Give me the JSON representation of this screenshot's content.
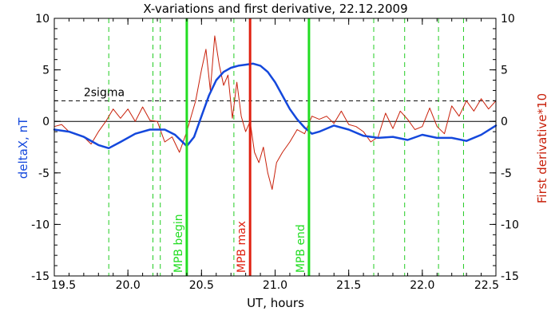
{
  "chart_data": {
    "type": "line",
    "title": "X-variations and first derivative, 22.12.2009",
    "xlabel": "UT, hours",
    "ylabel_left": "deltaX, nT",
    "ylabel_right": "First derivative*10",
    "xlim": [
      19.5,
      22.5
    ],
    "ylim": [
      -15,
      10
    ],
    "ylim_right": [
      -15,
      10
    ],
    "x_ticks": [
      19.5,
      20.0,
      20.5,
      21.0,
      21.5,
      22.0,
      22.5
    ],
    "x_tick_labels": [
      "19.5",
      "20.0",
      "20.5",
      "21.0",
      "21.5",
      "22.0",
      "22.5"
    ],
    "y_ticks": [
      10,
      5,
      0,
      -5,
      -10,
      -15
    ],
    "y_tick_labels": [
      "10",
      "5",
      "0",
      "-5",
      "-10",
      "-15"
    ],
    "y_right_ticks": [
      10,
      5,
      0,
      -5,
      -10,
      -15
    ],
    "y_right_tick_labels": [
      "10",
      "5",
      "0",
      "-5",
      "-10",
      "-15"
    ],
    "grid": false,
    "colors": {
      "deltaX": "#1448dc",
      "derivative": "#c8200a",
      "mpb_lines": "#22dd22",
      "mpb_max_line": "#e02010",
      "minor_lines": "#22cc22",
      "left_axis_label": "#1448dc",
      "right_axis_label": "#c8200a"
    },
    "series": [
      {
        "key": "deltaX",
        "axis": "left",
        "x": [
          19.5,
          19.6,
          19.7,
          19.8,
          19.87,
          19.95,
          20.05,
          20.15,
          20.25,
          20.32,
          20.4,
          20.45,
          20.5,
          20.55,
          20.6,
          20.65,
          20.7,
          20.75,
          20.8,
          20.85,
          20.9,
          20.95,
          21.0,
          21.05,
          21.1,
          21.15,
          21.2,
          21.25,
          21.3,
          21.4,
          21.5,
          21.6,
          21.7,
          21.8,
          21.9,
          22.0,
          22.1,
          22.2,
          22.3,
          22.4,
          22.5
        ],
        "y": [
          -0.8,
          -1.0,
          -1.5,
          -2.3,
          -2.6,
          -2.0,
          -1.2,
          -0.8,
          -0.8,
          -1.3,
          -2.4,
          -1.5,
          0.5,
          2.5,
          4.0,
          4.8,
          5.2,
          5.4,
          5.5,
          5.6,
          5.4,
          4.8,
          3.8,
          2.5,
          1.2,
          0.2,
          -0.6,
          -1.2,
          -1.0,
          -0.4,
          -0.8,
          -1.4,
          -1.6,
          -1.5,
          -1.8,
          -1.3,
          -1.6,
          -1.6,
          -1.9,
          -1.3,
          -0.4
        ]
      },
      {
        "key": "derivative",
        "axis": "right",
        "x": [
          19.5,
          19.55,
          19.6,
          19.65,
          19.7,
          19.75,
          19.8,
          19.85,
          19.9,
          19.95,
          20.0,
          20.05,
          20.1,
          20.15,
          20.2,
          20.25,
          20.3,
          20.35,
          20.4,
          20.43,
          20.46,
          20.5,
          20.53,
          20.56,
          20.59,
          20.62,
          20.65,
          20.68,
          20.71,
          20.74,
          20.77,
          20.8,
          20.83,
          20.86,
          20.89,
          20.92,
          20.95,
          20.98,
          21.01,
          21.05,
          21.1,
          21.15,
          21.2,
          21.25,
          21.3,
          21.35,
          21.4,
          21.45,
          21.5,
          21.55,
          21.6,
          21.65,
          21.7,
          21.75,
          21.8,
          21.85,
          21.9,
          21.95,
          22.0,
          22.05,
          22.1,
          22.15,
          22.2,
          22.25,
          22.3,
          22.35,
          22.4,
          22.45,
          22.5
        ],
        "y": [
          -0.5,
          -0.3,
          -1.0,
          -1.2,
          -1.5,
          -2.2,
          -1.0,
          0.0,
          1.2,
          0.3,
          1.2,
          0.0,
          1.4,
          0.1,
          0.0,
          -2.0,
          -1.5,
          -3.0,
          -1.0,
          0.5,
          2.0,
          5.0,
          7.0,
          3.0,
          8.3,
          5.5,
          3.5,
          4.5,
          0.3,
          3.8,
          0.5,
          -1.0,
          0.0,
          -3.0,
          -4.0,
          -2.5,
          -5.0,
          -6.6,
          -4.0,
          -3.0,
          -2.0,
          -0.8,
          -1.2,
          0.5,
          0.2,
          0.5,
          -0.2,
          1.0,
          -0.3,
          -0.5,
          -1.0,
          -2.0,
          -1.5,
          0.8,
          -0.7,
          1.0,
          0.2,
          -0.8,
          -0.5,
          1.3,
          -0.5,
          -1.2,
          1.5,
          0.5,
          2.0,
          1.0,
          2.2,
          1.2,
          2.0
        ]
      }
    ],
    "reference_lines": {
      "zero": 0,
      "two_sigma": 2.0,
      "two_sigma_label": "2sigma"
    },
    "vertical_markers": [
      {
        "x": 20.4,
        "label": "MPB begin",
        "style": "solid",
        "color_key": "mpb_lines"
      },
      {
        "x": 20.83,
        "label": "MPB max",
        "style": "solid",
        "color_key": "mpb_max_line"
      },
      {
        "x": 21.23,
        "label": "MPB end",
        "style": "solid",
        "color_key": "mpb_lines"
      }
    ],
    "minor_markers_x": [
      19.87,
      20.17,
      20.22,
      20.72,
      21.67,
      21.88,
      22.11,
      22.28
    ]
  }
}
